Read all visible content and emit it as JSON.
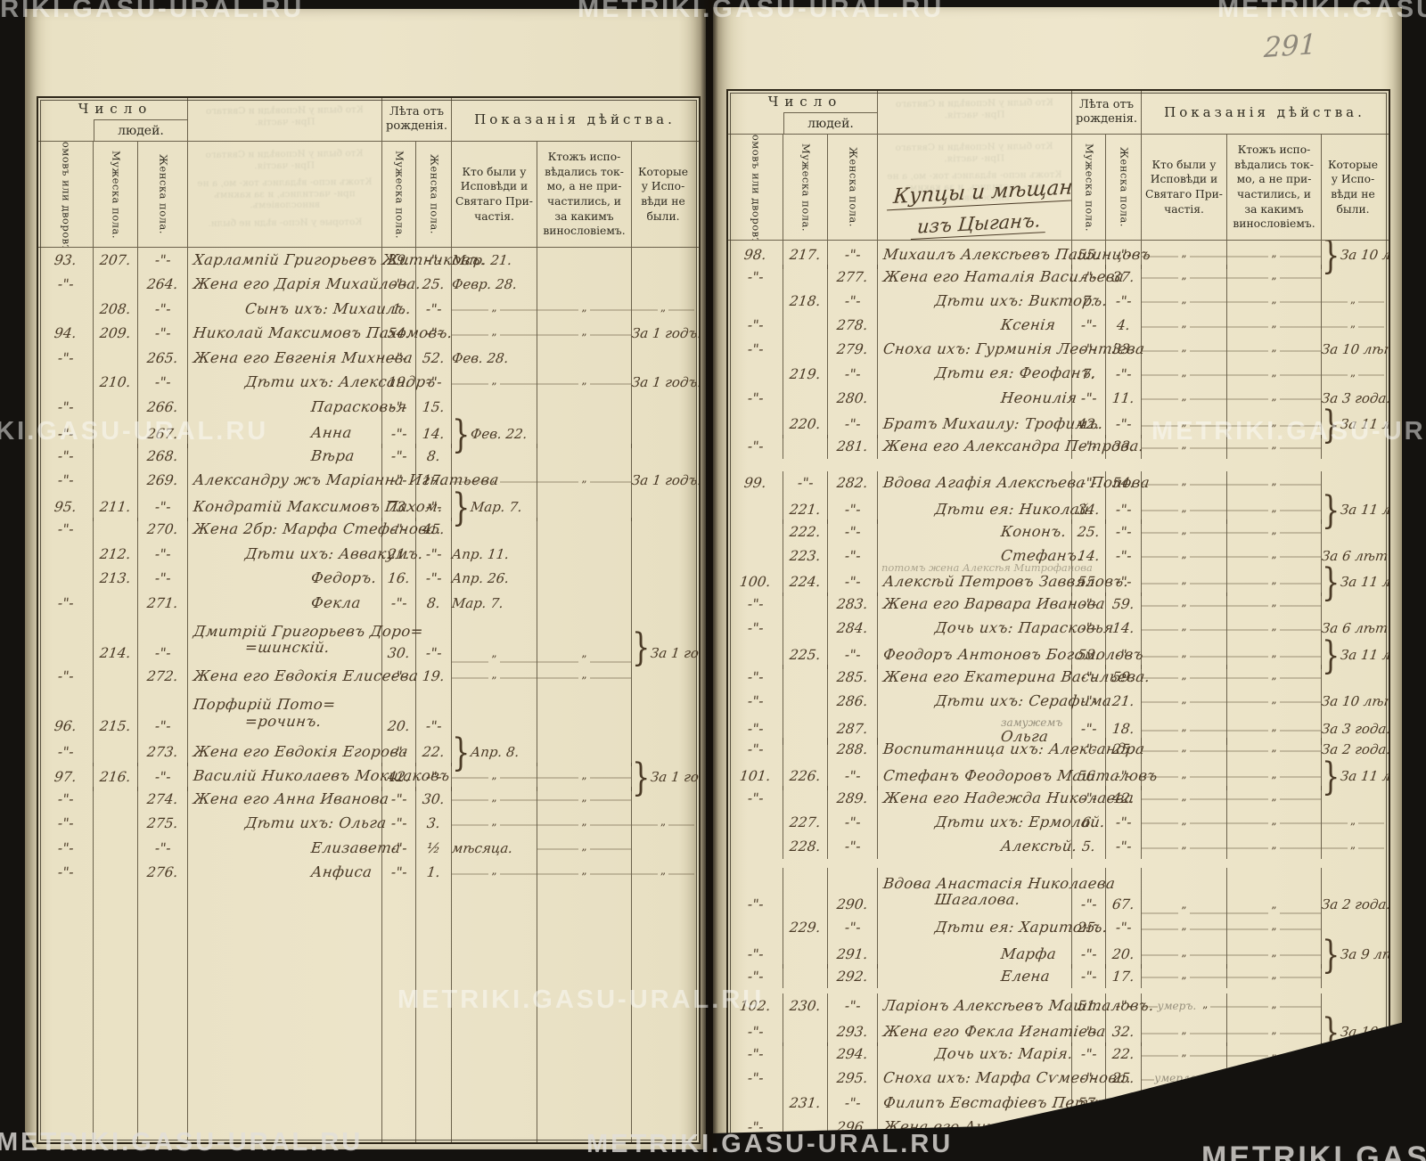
{
  "page_number": "291",
  "watermark": "METRIKI.GASU-URAL.RU",
  "header": {
    "number_group": "Число",
    "people": "людей.",
    "col_houses": "Домовъ или дворовъ.",
    "col_male": "Мужеска пола.",
    "col_female": "Женска пола.",
    "years_group": "Лѣта отъ рожденія.",
    "years_male": "Мужеска пола.",
    "years_female": "Женска пола.",
    "deeds_group": "Показанія дѣйства.",
    "col_confessed": "Кто были у Исповѣди и Святаго При- частія.",
    "col_confessed_only": "Ктожъ испо- вѣдались ток- мо, а не при- частились, и за какимъ винословіемъ.",
    "col_absent": "Которые у Испо- вѣди не были."
  },
  "left_page": {
    "rows": [
      {
        "h": "93.",
        "m": "207.",
        "f": "-\"-",
        "n": "Харлампій Григорьевъ Житниковъ.",
        "i": 0,
        "ma": "29.",
        "fa": "-\"-",
        "c1": "Мар. 21.",
        "c2": "",
        "c3": ""
      },
      {
        "h": "-\"-",
        "m": "",
        "f": "264.",
        "n": "Жена его Дарія Михайлова.",
        "i": 0,
        "ma": "-\"-",
        "fa": "25.",
        "c1": "Февр. 28.",
        "c2": "",
        "c3": ""
      },
      {
        "h": "",
        "m": "208.",
        "f": "-\"-",
        "n": "Сынъ ихъ: Михаилъ.",
        "i": 1,
        "ma": "1.",
        "fa": "-\"-",
        "c1": "~",
        "c2": "~",
        "c3": "~"
      },
      {
        "h": "94.",
        "m": "209.",
        "f": "-\"-",
        "n": "Николай Максимовъ Пахомовъ.",
        "i": 0,
        "ma": "54.",
        "fa": "-\"-",
        "c1": "~",
        "c2": "~",
        "c3": "За 1 годъ."
      },
      {
        "h": "-\"-",
        "m": "",
        "f": "265.",
        "n": "Жена его Евгенія Михнева",
        "i": 0,
        "ma": "-\"-",
        "fa": "52.",
        "c1": "Фев. 28.",
        "c2": "",
        "c3": ""
      },
      {
        "h": "",
        "m": "210.",
        "f": "-\"-",
        "n": "Дѣти ихъ: Александръ",
        "i": 1,
        "ma": "19.",
        "fa": "-\"-",
        "c1": "~",
        "c2": "~",
        "c3": "За 1 годъ."
      },
      {
        "h": "-\"-",
        "m": "",
        "f": "266.",
        "n": "Парасковья",
        "i": 2,
        "ma": "-\"-",
        "fa": "15.",
        "c1": "",
        "c2": "",
        "c3": ""
      },
      {
        "h": "-\"-",
        "m": "",
        "f": "267.",
        "n": "Анна",
        "i": 2,
        "ma": "-\"-",
        "fa": "14.",
        "c1": "}Фев. 22.",
        "c2": "",
        "c3": ""
      },
      {
        "h": "-\"-",
        "m": "",
        "f": "268.",
        "n": "Вѣра",
        "i": 2,
        "ma": "-\"-",
        "fa": "8.",
        "c1": "",
        "c2": "",
        "c3": ""
      },
      {
        "h": "-\"-",
        "m": "",
        "f": "269.",
        "n": "Александру жъ Маріанна Игнатьева",
        "i": 0,
        "ma": "-\"-",
        "fa": "17.",
        "c1": "~",
        "c2": "~",
        "c3": "За 1 годъ."
      },
      {
        "h": "95.",
        "m": "211.",
        "f": "-\"-",
        "n": "Кондратій Максимовъ Пахом.",
        "i": 0,
        "ma": "73.",
        "fa": "-\"-",
        "c1": "}Мар. 7.",
        "c2": "",
        "c3": ""
      },
      {
        "h": "-\"-",
        "m": "",
        "f": "270.",
        "n": "Жена 2бр: Марфа Стефанова.",
        "i": 0,
        "ma": "-\"-",
        "fa": "45.",
        "c1": "",
        "c2": "",
        "c3": ""
      },
      {
        "h": "",
        "m": "212.",
        "f": "-\"-",
        "n": "Дѣти ихъ: Аввакумъ.",
        "i": 1,
        "ma": "21.",
        "fa": "-\"-",
        "c1": "Апр. 11.",
        "c2": "",
        "c3": ""
      },
      {
        "h": "",
        "m": "213.",
        "f": "-\"-",
        "n": "Федоръ.",
        "i": 2,
        "ma": "16.",
        "fa": "-\"-",
        "c1": "Апр. 26.",
        "c2": "",
        "c3": ""
      },
      {
        "h": "-\"-",
        "m": "",
        "f": "271.",
        "n": "Фекла",
        "i": 2,
        "ma": "-\"-",
        "fa": "8.",
        "c1": "Мар. 7.",
        "c2": "",
        "c3": ""
      },
      {
        "h": "",
        "m": "214.",
        "f": "-\"-",
        "n": "Дмитрій Григорьевъ Доро=",
        "n2": "=шинскій.",
        "i": 0,
        "i2": 1,
        "ma": "30.",
        "fa": "-\"-",
        "c1": "~",
        "c2": "~",
        "c3": "}За 1 годъ.",
        "t": true
      },
      {
        "h": "-\"-",
        "m": "",
        "f": "272.",
        "n": "Жена его Евдокія Елисеева",
        "i": 0,
        "ma": "-\"-",
        "fa": "19.",
        "c1": "~",
        "c2": "~",
        "c3": ""
      },
      {
        "h": "96.",
        "m": "215.",
        "f": "-\"-",
        "n": "Порфирій                Пото=",
        "n2": "=рочинъ.",
        "i": 0,
        "i2": 1,
        "ma": "20.",
        "fa": "-\"-",
        "c1": "",
        "c2": "",
        "c3": "",
        " t": true,
        "t ": true,
        "t2": true,
        "t3": true,
        "tall": true,
        "t4": true,
        "t5": true,
        "t6": true,
        "t7": true,
        "t8": true,
        "t9": true,
        "ta": true,
        "tb": true,
        "tc": true,
        "td": true,
        "te": true,
        "tf": true,
        "tg": true,
        "th": true,
        "ti": true,
        "tj": true,
        "tk": true,
        "tl": true,
        "tm": true,
        "tn": true,
        "to": true,
        "tp": true,
        "tq": true,
        "tr": true,
        "ts": true,
        "tt": true,
        "tu": true,
        "tv": true,
        "tw": true,
        "tx": true,
        "ty": true,
        "tz": true,
        "t0": true,
        "t1": true,
        "tA": true,
        "tB": true,
        "tC": true,
        "tD": true,
        "tE": true,
        "tF": true,
        "tG": true,
        "tH": true,
        "tI": true,
        "tJ": true,
        "tK": true,
        "tL": true,
        "tM": true,
        "tN": true,
        "tO": true,
        "tP": true,
        "tQ": true,
        "tR": true,
        "tS": true,
        "tT": true,
        "tU": true,
        "tV": true,
        "tW": true,
        "tX": true,
        "tY": true,
        "tZ": true,
        "tAA": true,
        "t_": true,
        "t__": true,
        "t___": true,
        "t____": true,
        "t_____": true,
        "t______": true,
        "t_______": true,
        "t________": true,
        "t_________": true,
        "t__________": true
      }
    ]
  },
  "right_page": {
    "section_title": {
      "line1": "Купцы и мѣщане",
      "line2": "изъ Цыганъ."
    },
    "rows": []
  }
}
